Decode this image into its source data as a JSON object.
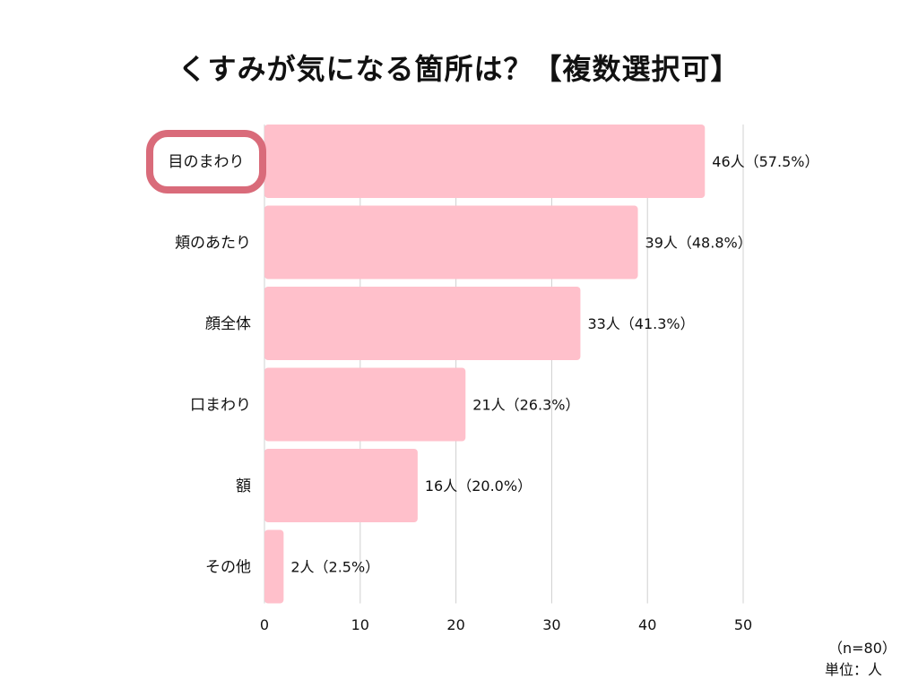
{
  "chart_data": {
    "type": "bar",
    "orientation": "horizontal",
    "title": "くすみが気になる箇所は？【複数選択可】",
    "categories": [
      "目のまわり",
      "頬のあたり",
      "顔全体",
      "口まわり",
      "額",
      "その他"
    ],
    "values": [
      46,
      39,
      33,
      21,
      16,
      2
    ],
    "data_labels": [
      "46人（57.5%）",
      "39人（48.8%）",
      "33人（41.3%）",
      "21人（26.3%）",
      "16人（20.0%）",
      "2人（2.5%）"
    ],
    "xlim": [
      0,
      50
    ],
    "xticks": [
      0,
      10,
      20,
      30,
      40,
      50
    ],
    "xlabel": "",
    "ylabel": "",
    "grid": "vertical",
    "highlighted_category": "目のまわり",
    "colors": {
      "bar": "#ffc0cb",
      "grid": "#d0d0d0",
      "highlight_border": "#d96b7a"
    }
  },
  "footnotes": {
    "sample": "（n=80）",
    "unit": "単位：人"
  }
}
